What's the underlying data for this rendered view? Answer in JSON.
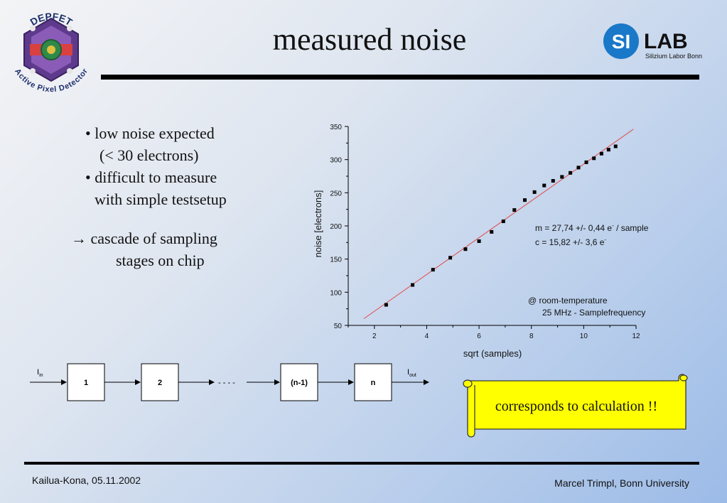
{
  "slide": {
    "title": "measured noise",
    "bullets": [
      {
        "line1": "• low noise expected",
        "line2": "(< 30 electrons)"
      },
      {
        "line1": "• difficult to measure",
        "line2": "with simple testsetup"
      }
    ],
    "cascade": {
      "line1": "→ cascade of sampling",
      "line2": "stages on chip"
    },
    "note": "corresponds to calculation !!",
    "footer_left": "Kailua-Kona, 05.11.2002",
    "footer_right": "Marcel Trimpl, Bonn University"
  },
  "logos": {
    "depfet_top": "DEPFET",
    "depfet_bottom": "Active Pixel Detector",
    "silab_si": "SI",
    "silab_lab": "LAB",
    "silab_sub": "Silizium Labor Bonn"
  },
  "diagram": {
    "input_label": "I",
    "input_sub": "in",
    "output_label": "I",
    "output_sub": "out",
    "stages": [
      "1",
      "2",
      "(n-1)",
      "n"
    ],
    "ellipsis": "- - - -"
  },
  "chart_data": {
    "type": "scatter",
    "xlabel": "sqrt (samples)",
    "ylabel": "noise [electrons]",
    "xlim": [
      1,
      12
    ],
    "ylim": [
      50,
      350
    ],
    "xticks": [
      2,
      4,
      6,
      8,
      10,
      12
    ],
    "yticks": [
      50,
      100,
      150,
      200,
      250,
      300,
      350
    ],
    "points": [
      {
        "x": 2.45,
        "y": 81
      },
      {
        "x": 3.46,
        "y": 111
      },
      {
        "x": 4.24,
        "y": 134
      },
      {
        "x": 4.9,
        "y": 152
      },
      {
        "x": 5.48,
        "y": 165
      },
      {
        "x": 6.0,
        "y": 177
      },
      {
        "x": 6.48,
        "y": 191
      },
      {
        "x": 6.93,
        "y": 207
      },
      {
        "x": 7.35,
        "y": 224
      },
      {
        "x": 7.75,
        "y": 239
      },
      {
        "x": 8.12,
        "y": 251
      },
      {
        "x": 8.49,
        "y": 261
      },
      {
        "x": 8.83,
        "y": 268
      },
      {
        "x": 9.17,
        "y": 274
      },
      {
        "x": 9.49,
        "y": 280
      },
      {
        "x": 9.8,
        "y": 288
      },
      {
        "x": 10.1,
        "y": 296
      },
      {
        "x": 10.39,
        "y": 302
      },
      {
        "x": 10.68,
        "y": 309
      },
      {
        "x": 10.95,
        "y": 315
      },
      {
        "x": 11.22,
        "y": 320
      }
    ],
    "fit": {
      "m": 27.74,
      "c": 15.82,
      "x_range": [
        1.6,
        11.9
      ],
      "color": "#e24a4a"
    },
    "marker_color": "#000000",
    "annotations": [
      {
        "line1": "m = 27,74 +/- 0,44 e",
        "line1_sup": "-",
        "line1_tail": " / sample",
        "line2": "c = 15,82 +/- 3,6  e",
        "line2_sup": "-"
      },
      {
        "line1": "@ room-temperature",
        "line2": "25 MHz - Samplefrequency"
      }
    ]
  }
}
